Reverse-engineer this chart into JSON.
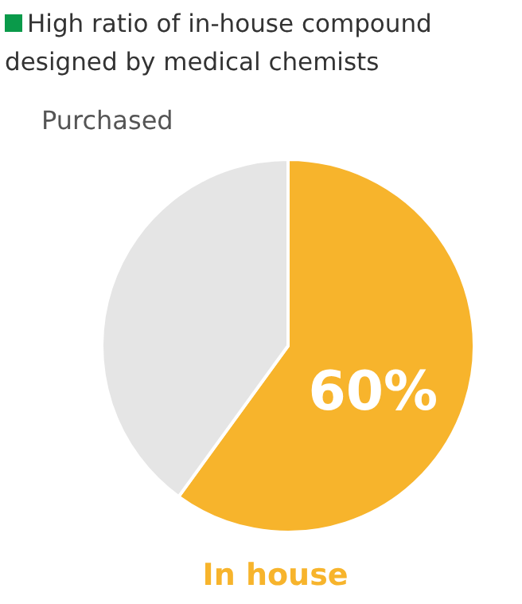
{
  "chart_data": {
    "type": "pie",
    "title": "High ratio of in-house compound designed by medical chemists",
    "categories": [
      "In house",
      "Purchased"
    ],
    "values": [
      60,
      40
    ],
    "colors": [
      "#f7b42c",
      "#e5e5e5"
    ],
    "value_labels": [
      "60%",
      null
    ],
    "legend": false
  }
}
